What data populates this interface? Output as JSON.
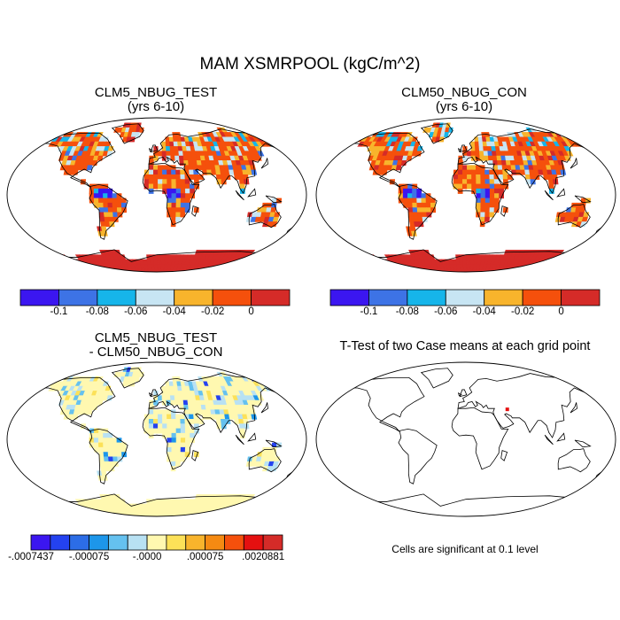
{
  "figure": {
    "main_title": "MAM XSMRPOOL (kgC/m^2)"
  },
  "panels": [
    {
      "title_line1": "CLM5_NBUG_TEST",
      "title_line2": "(yrs 6-10)"
    },
    {
      "title_line1": "CLM50_NBUG_CON",
      "title_line2": "(yrs 6-10)"
    },
    {
      "title_line1": "CLM5_NBUG_TEST",
      "title_line2": "- CLM50_NBUG_CON"
    },
    {
      "title_line1": "T-Test of two Case means at each grid point",
      "title_line2": ""
    }
  ],
  "colorbar_top": {
    "colors": [
      "#3b16f0",
      "#3d73e6",
      "#16b5ea",
      "#c7e5f3",
      "#f8b42c",
      "#f5500c",
      "#d52b28"
    ],
    "labels": [
      "-0.1",
      "-0.08",
      "-0.06",
      "-0.04",
      "-0.02",
      "0"
    ]
  },
  "colorbar_diff": {
    "colors": [
      "#3b16f0",
      "#2442f0",
      "#2c6de6",
      "#1d96ea",
      "#65c1ef",
      "#b8e1f3",
      "#fff8b0",
      "#fce158",
      "#f8b42c",
      "#f58a12",
      "#f5500c",
      "#e51010",
      "#d52b28"
    ],
    "labels": [
      "-.0007437",
      "-.000075",
      "-.0000",
      ".000075",
      ".0020881"
    ]
  },
  "significance_note": "Cells are significant at 0.1 level"
}
